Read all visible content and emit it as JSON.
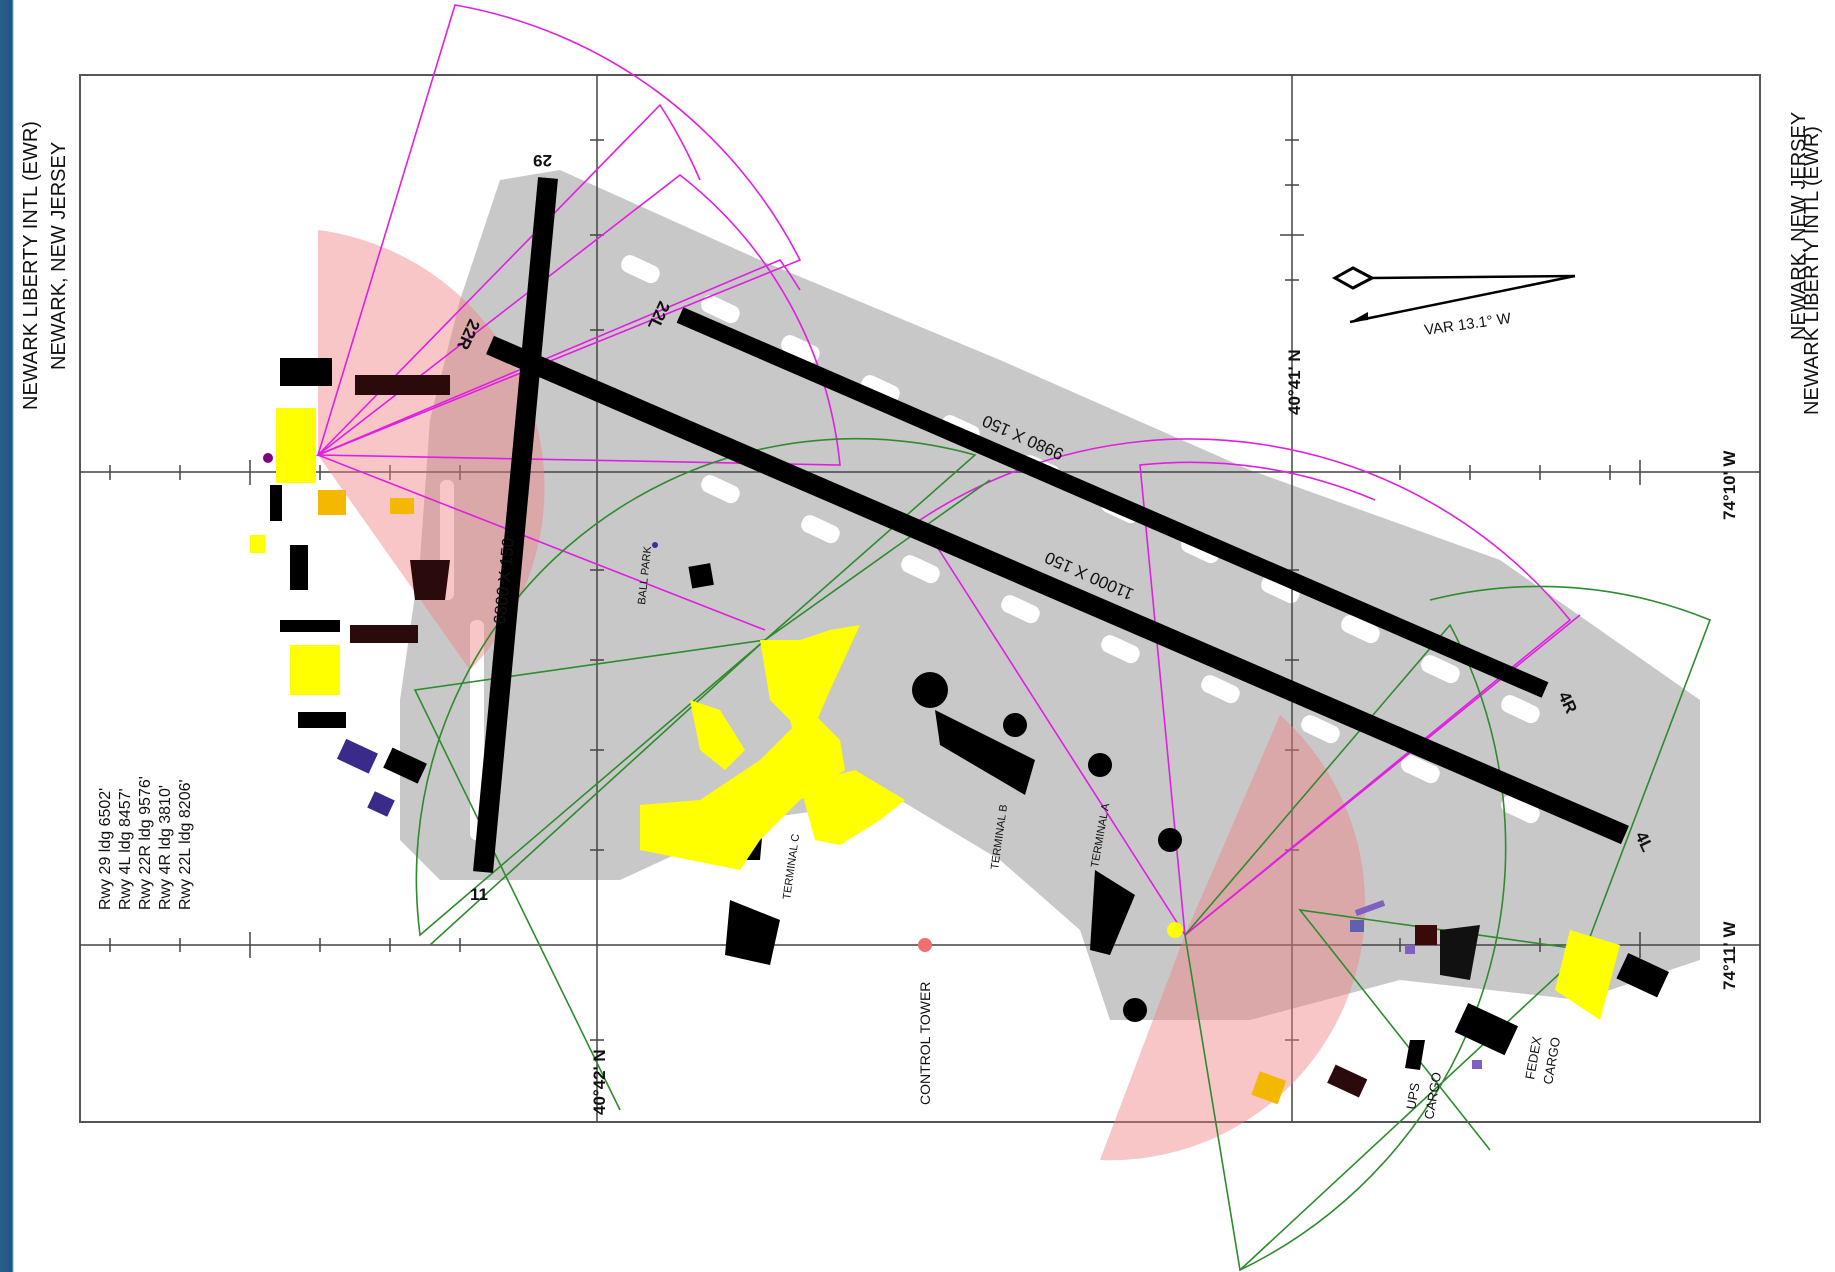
{
  "header": {
    "title_left_1": "NEWARK LIBERTY INTL (EWR)",
    "title_left_2": "NEWARK, NEW JERSEY",
    "title_right_1": "NEWARK, NEW JERSEY",
    "title_right_2": "NEWARK LIBERTY INTL (EWR)"
  },
  "coords": {
    "lat_41": "40°41' N",
    "lat_42": "40°42' N",
    "lon_10": "74°10' W",
    "lon_11": "74°11' W"
  },
  "variation": "VAR 13.1° W",
  "runways": {
    "r29": "29",
    "r11": "11",
    "r22R": "22R",
    "r4L": "4L",
    "r22L": "22L",
    "r4R": "4R",
    "dim_11_29": "6800 X 150",
    "dim_4L_22R": "11000 X 150",
    "dim_4R_22L": "9980 X 150"
  },
  "legend": [
    "Rwy 29 ldg 6502'",
    "Rwy 4L ldg 8457'",
    "Rwy 22R ldg 9576'",
    "Rwy 4R ldg 3810'",
    "Rwy 22L ldg 8206'"
  ],
  "places": {
    "terminal_a": "TERMINAL A",
    "terminal_b": "TERMINAL B",
    "terminal_c": "TERMINAL C",
    "control_tower": "CONTROL TOWER",
    "ball_park": "BALL PARK",
    "ups": "UPS",
    "ups_cargo": "CARGO",
    "fedex": "FEDEX",
    "fedex_cargo": "CARGO"
  },
  "colors": {
    "runway": "#000000",
    "taxiway": "#c8c8c8",
    "sector_magenta": "#e020e0",
    "sector_green": "#2e8b2e",
    "shade_red": "#f08080",
    "terminal_yellow": "#ffff00"
  }
}
